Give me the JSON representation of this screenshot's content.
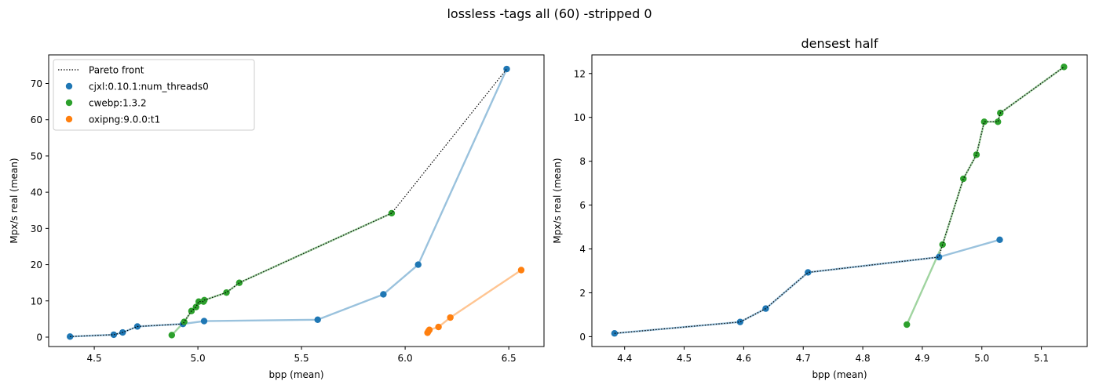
{
  "figure": {
    "suptitle": "lossless -tags all (60) -stripped 0"
  },
  "colors": {
    "cjxl": "#1f77b4",
    "cwebp": "#2ca02c",
    "oxipng": "#ff7f0e",
    "pareto": "#000000"
  },
  "legend": {
    "placement": "upper-left",
    "pareto_label": "Pareto front"
  },
  "chart_data": [
    {
      "type": "scatter",
      "title": "",
      "xlabel": "bpp (mean)",
      "ylabel": "Mpx/s real (mean)",
      "xlim": [
        4.28,
        6.67
      ],
      "ylim": [
        -2.6,
        77.9
      ],
      "xticks": [
        4.5,
        5.0,
        5.5,
        6.0,
        6.5
      ],
      "xtick_labels": [
        "4.5",
        "5.0",
        "5.5",
        "6.0",
        "6.5"
      ],
      "yticks": [
        0,
        10,
        20,
        30,
        40,
        50,
        60,
        70
      ],
      "ytick_labels": [
        "0",
        "10",
        "20",
        "30",
        "40",
        "50",
        "60",
        "70"
      ],
      "grid": false,
      "series": [
        {
          "name": "cjxl:0.10.1:num_threads0",
          "color_key": "cjxl",
          "x": [
            4.383,
            4.594,
            4.637,
            4.708,
            4.928,
            5.03,
            5.578,
            5.895,
            6.063,
            6.49
          ],
          "y": [
            0.15,
            0.67,
            1.28,
            2.93,
            3.63,
            4.42,
            4.8,
            11.8,
            20.0,
            74.0
          ]
        },
        {
          "name": "cwebp:1.3.2",
          "color_key": "cwebp",
          "x": [
            4.874,
            4.934,
            4.969,
            4.991,
            5.004,
            5.027,
            5.031,
            5.138,
            5.2,
            5.935
          ],
          "y": [
            0.55,
            4.2,
            7.2,
            8.3,
            9.8,
            9.8,
            10.2,
            12.3,
            15.0,
            34.2
          ]
        },
        {
          "name": "oxipng:9.0.0:t1",
          "color_key": "oxipng",
          "x": [
            6.108,
            6.112,
            6.117,
            6.161,
            6.218,
            6.56
          ],
          "y": [
            1.2,
            1.6,
            2.0,
            2.8,
            5.4,
            18.5
          ]
        }
      ],
      "pareto": {
        "x": [
          4.383,
          4.594,
          4.637,
          4.708,
          4.928,
          4.934,
          4.969,
          4.991,
          5.004,
          5.027,
          5.031,
          5.138,
          5.2,
          5.935,
          6.49
        ],
        "y": [
          0.15,
          0.67,
          1.28,
          2.93,
          3.63,
          4.2,
          7.2,
          8.3,
          9.8,
          9.8,
          10.2,
          12.3,
          15.0,
          34.2,
          74.0
        ]
      }
    },
    {
      "type": "scatter",
      "title": "densest half",
      "xlabel": "bpp (mean)",
      "ylabel": "Mpx/s real (mean)",
      "xlim": [
        4.345,
        5.177
      ],
      "ylim": [
        -0.45,
        12.85
      ],
      "xticks": [
        4.4,
        4.5,
        4.6,
        4.7,
        4.8,
        4.9,
        5.0,
        5.1
      ],
      "xtick_labels": [
        "4.4",
        "4.5",
        "4.6",
        "4.7",
        "4.8",
        "4.9",
        "5.0",
        "5.1"
      ],
      "yticks": [
        0,
        2,
        4,
        6,
        8,
        10,
        12
      ],
      "ytick_labels": [
        "0",
        "2",
        "4",
        "6",
        "8",
        "10",
        "12"
      ],
      "grid": false,
      "series": [
        {
          "name": "cjxl:0.10.1:num_threads0",
          "color_key": "cjxl",
          "x": [
            4.383,
            4.594,
            4.637,
            4.708,
            4.928,
            5.03
          ],
          "y": [
            0.15,
            0.67,
            1.28,
            2.93,
            3.63,
            4.42
          ]
        },
        {
          "name": "cwebp:1.3.2",
          "color_key": "cwebp",
          "x": [
            4.874,
            4.934,
            4.969,
            4.991,
            5.004,
            5.027,
            5.031,
            5.138
          ],
          "y": [
            0.55,
            4.2,
            7.2,
            8.3,
            9.8,
            9.8,
            10.2,
            12.3
          ]
        }
      ],
      "pareto": {
        "x": [
          4.383,
          4.594,
          4.637,
          4.708,
          4.928,
          4.934,
          4.969,
          4.991,
          5.004,
          5.027,
          5.031,
          5.138
        ],
        "y": [
          0.15,
          0.67,
          1.28,
          2.93,
          3.63,
          4.2,
          7.2,
          8.3,
          9.8,
          9.8,
          10.2,
          12.3
        ]
      }
    }
  ]
}
